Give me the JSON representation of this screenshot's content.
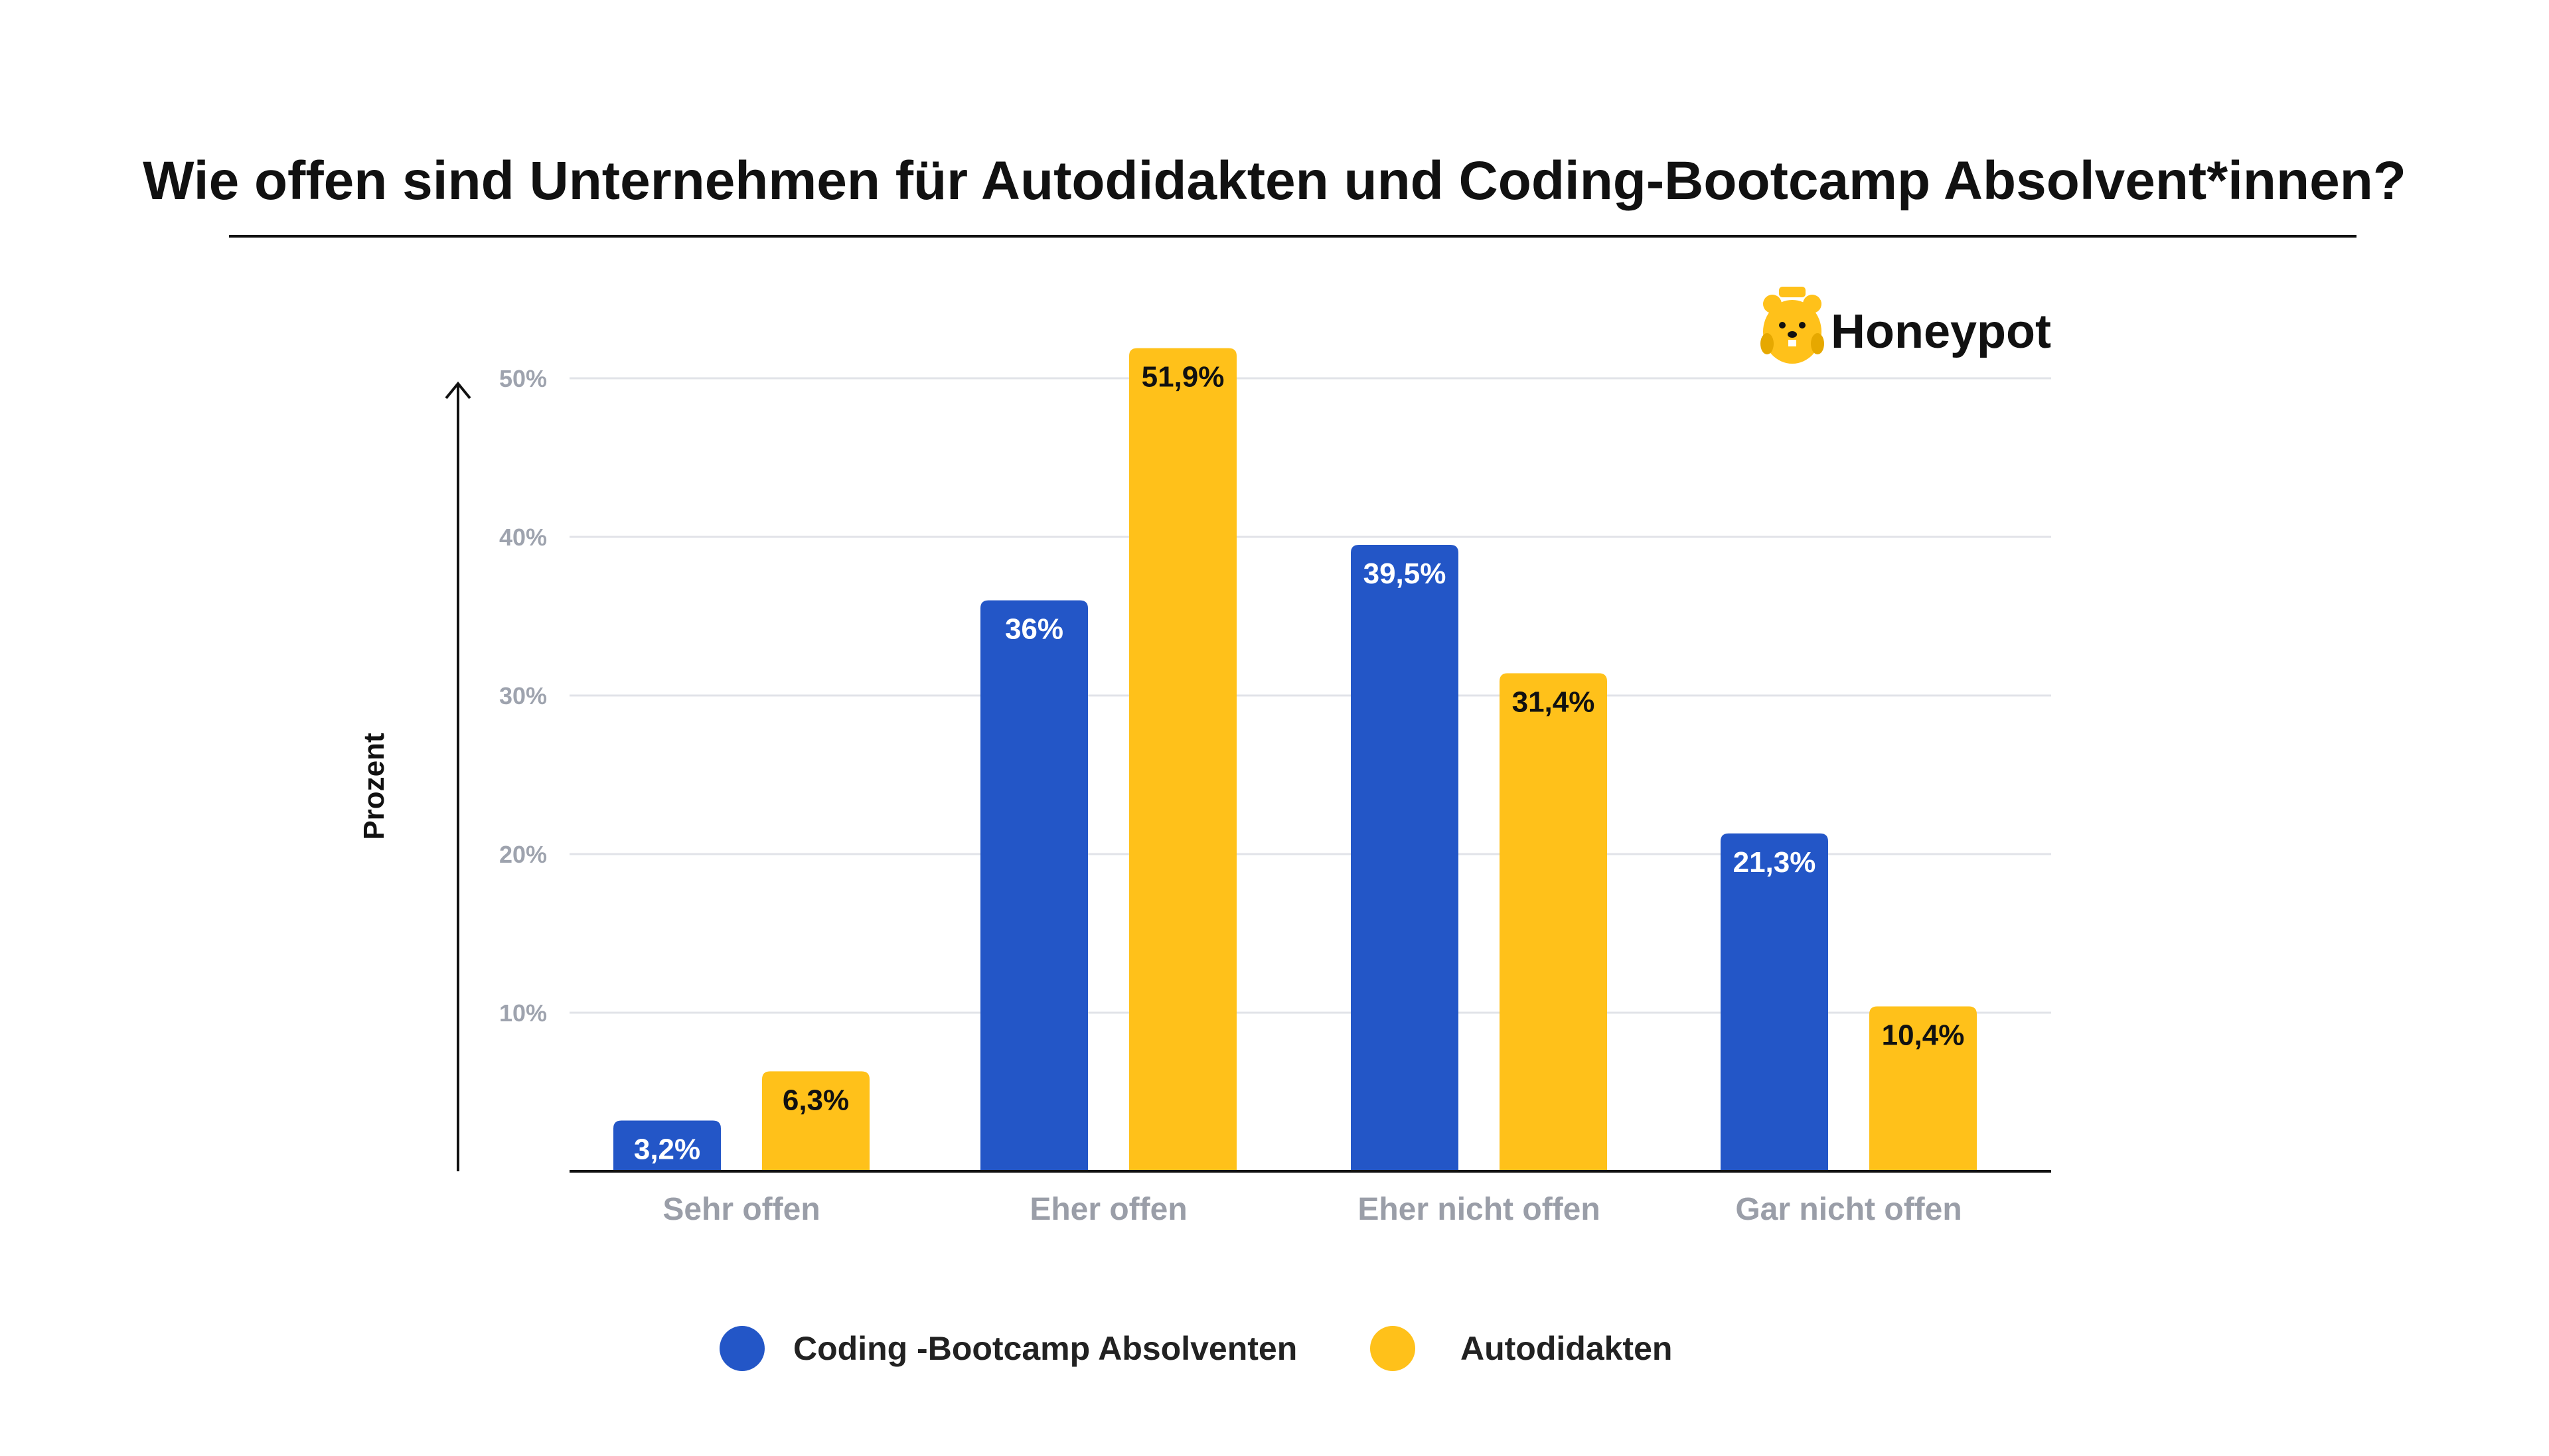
{
  "brand": {
    "name": "Honeypot",
    "icon": "honeypot-bear-icon",
    "color": "#ffc11a"
  },
  "chart_data": {
    "type": "bar",
    "title": "Wie offen sind Unternehmen für Autodidakten und Coding-Bootcamp Absolvent*innen?",
    "ylabel": "Prozent",
    "xlabel": "",
    "ylim": [
      0,
      50
    ],
    "yticks": [
      10,
      20,
      30,
      40,
      50
    ],
    "ytick_labels": [
      "10%",
      "20%",
      "30%",
      "40%",
      "50%"
    ],
    "grid": true,
    "legend_position": "bottom-center",
    "categories": [
      "Sehr offen",
      "Eher offen",
      "Eher nicht offen",
      "Gar nicht offen"
    ],
    "series": [
      {
        "name": "Coding -Bootcamp Absolventen",
        "color": "#2356c7",
        "label_color": "#ffffff",
        "values": [
          3.2,
          36,
          39.5,
          21.3
        ],
        "labels": [
          "3,2%",
          "36%",
          "39,5%",
          "21,3%"
        ]
      },
      {
        "name": "Autodidakten",
        "color": "#ffc11a",
        "label_color": "#111111",
        "values": [
          6.3,
          51.9,
          31.4,
          10.4
        ],
        "labels": [
          "6,3%",
          "51,9%",
          "31,4%",
          "10,4%"
        ]
      }
    ]
  }
}
